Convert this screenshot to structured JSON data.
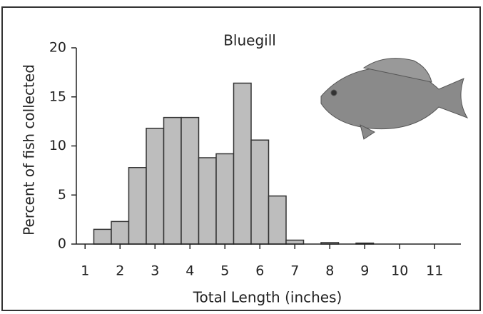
{
  "chart_data": {
    "type": "histogram",
    "title": "Bluegill",
    "xlabel": "Total Length (inches)",
    "ylabel": "Percent of fish collected",
    "bins": [
      1.25,
      1.75,
      2.25,
      2.75,
      3.25,
      3.75,
      4.25,
      4.75,
      5.25,
      5.75,
      6.25,
      6.75,
      7.25,
      7.75,
      8.25,
      8.75,
      9.25
    ],
    "values": [
      1.5,
      2.3,
      7.8,
      11.8,
      12.9,
      12.9,
      8.8,
      9.2,
      16.4,
      10.6,
      4.9,
      0.4,
      0,
      0.15,
      0,
      0.1
    ],
    "color": "#bdbdbd",
    "xlim": [
      0.75,
      11.75
    ],
    "xticks": [
      1,
      2,
      3,
      4,
      5,
      6,
      7,
      8,
      9,
      10,
      11
    ],
    "ylim": [
      0,
      20
    ],
    "yticks": [
      0,
      5,
      10,
      15,
      20
    ]
  }
}
